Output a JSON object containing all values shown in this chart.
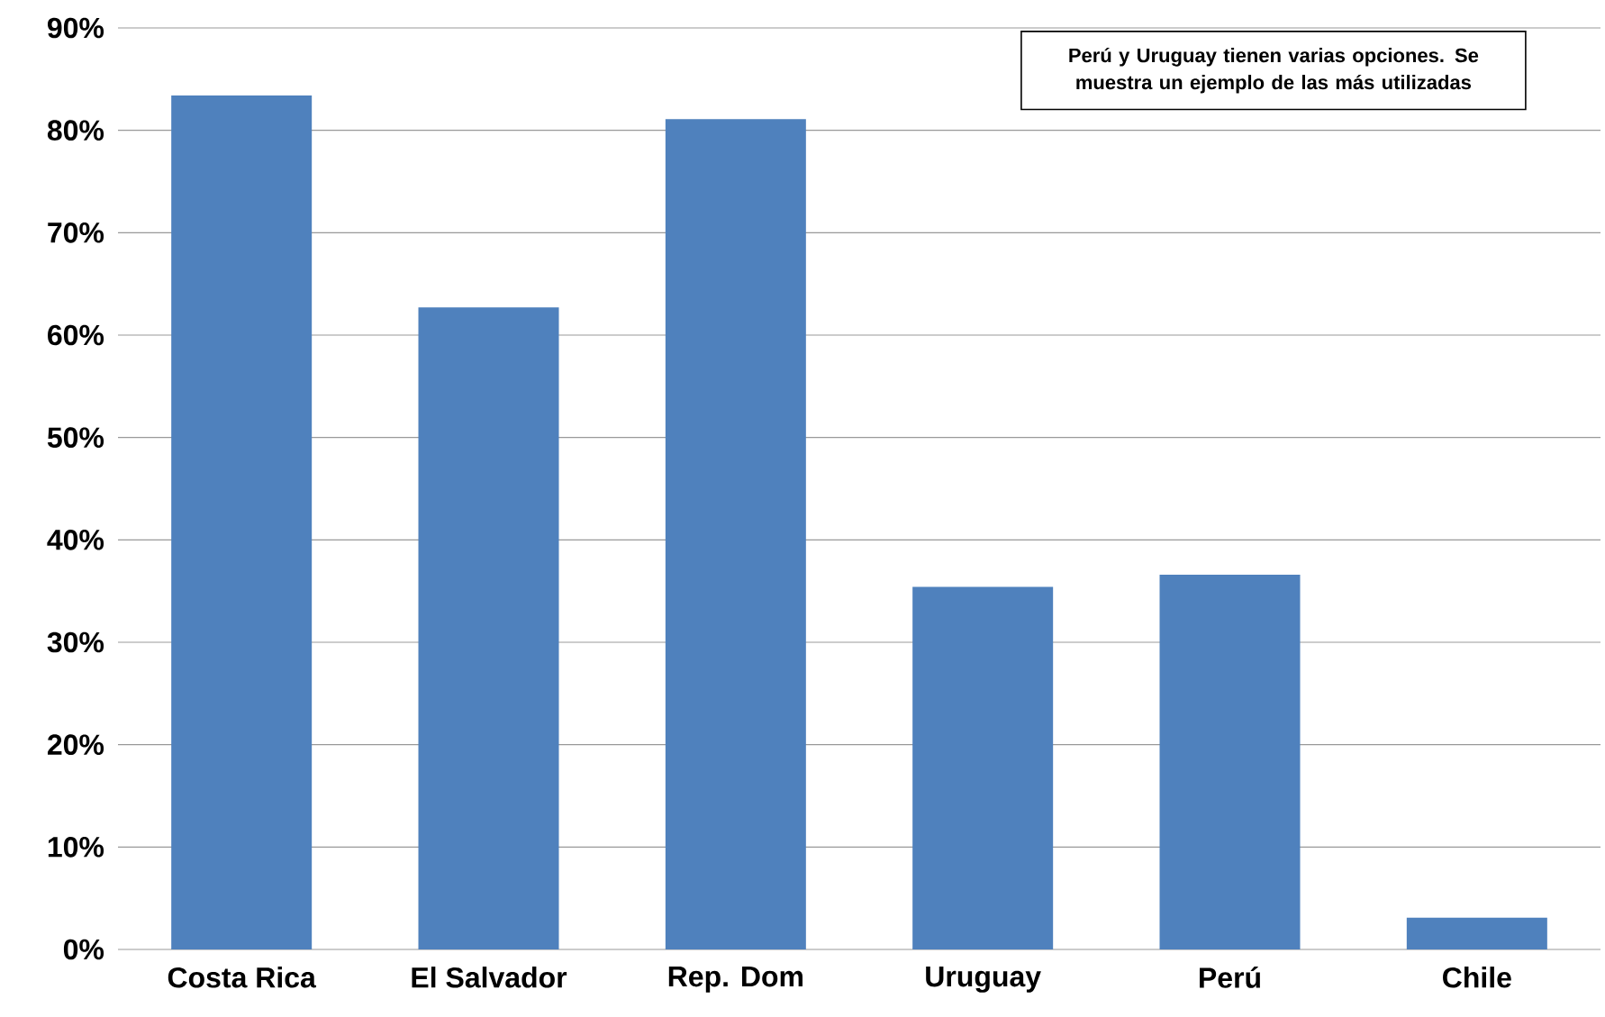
{
  "chart_data": {
    "type": "bar",
    "categories": [
      "Costa Rica",
      "El Salvador",
      "Rep. Dom",
      "Uruguay",
      "Perú",
      "Chile"
    ],
    "values": [
      83.4,
      62.7,
      81.1,
      35.4,
      36.6,
      3.1
    ],
    "color": "#4f81bd",
    "ylim": [
      0,
      90
    ],
    "yticks": [
      {
        "value": 0,
        "label": "0%"
      },
      {
        "value": 10,
        "label": "10%"
      },
      {
        "value": 20,
        "label": "20%"
      },
      {
        "value": 30,
        "label": "30%"
      },
      {
        "value": 40,
        "label": "40%"
      },
      {
        "value": 50,
        "label": "50%"
      },
      {
        "value": 60,
        "label": "60%"
      },
      {
        "value": 70,
        "label": "70%"
      },
      {
        "value": 80,
        "label": "80%"
      },
      {
        "value": 90,
        "label": "90%"
      }
    ],
    "grid": "y",
    "annotations": [
      "Perú y Uruguay tienen varias opciones. Se muestra un ejemplo de las más utilizadas"
    ]
  }
}
